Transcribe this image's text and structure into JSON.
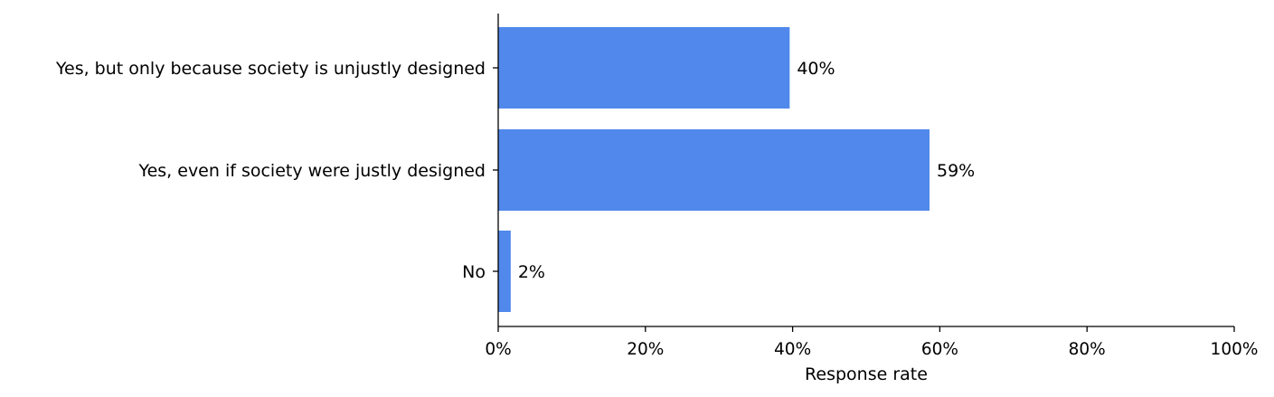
{
  "chart_data": {
    "type": "bar",
    "orientation": "horizontal",
    "categories": [
      "Yes, but only because society is unjustly designed",
      "Yes, even if society were justly designed",
      "No"
    ],
    "values": [
      0.396,
      0.586,
      0.017
    ],
    "value_labels": [
      "40%",
      "59%",
      "2%"
    ],
    "title": "",
    "xlabel": "Response rate",
    "ylabel": "",
    "xlim": [
      0,
      1
    ],
    "xticks": [
      0,
      0.2,
      0.4,
      0.6,
      0.8,
      1.0
    ],
    "xtick_labels": [
      "0%",
      "20%",
      "40%",
      "60%",
      "80%",
      "100%"
    ],
    "bar_color": "#5088ec",
    "grid": false,
    "legend": "none"
  }
}
